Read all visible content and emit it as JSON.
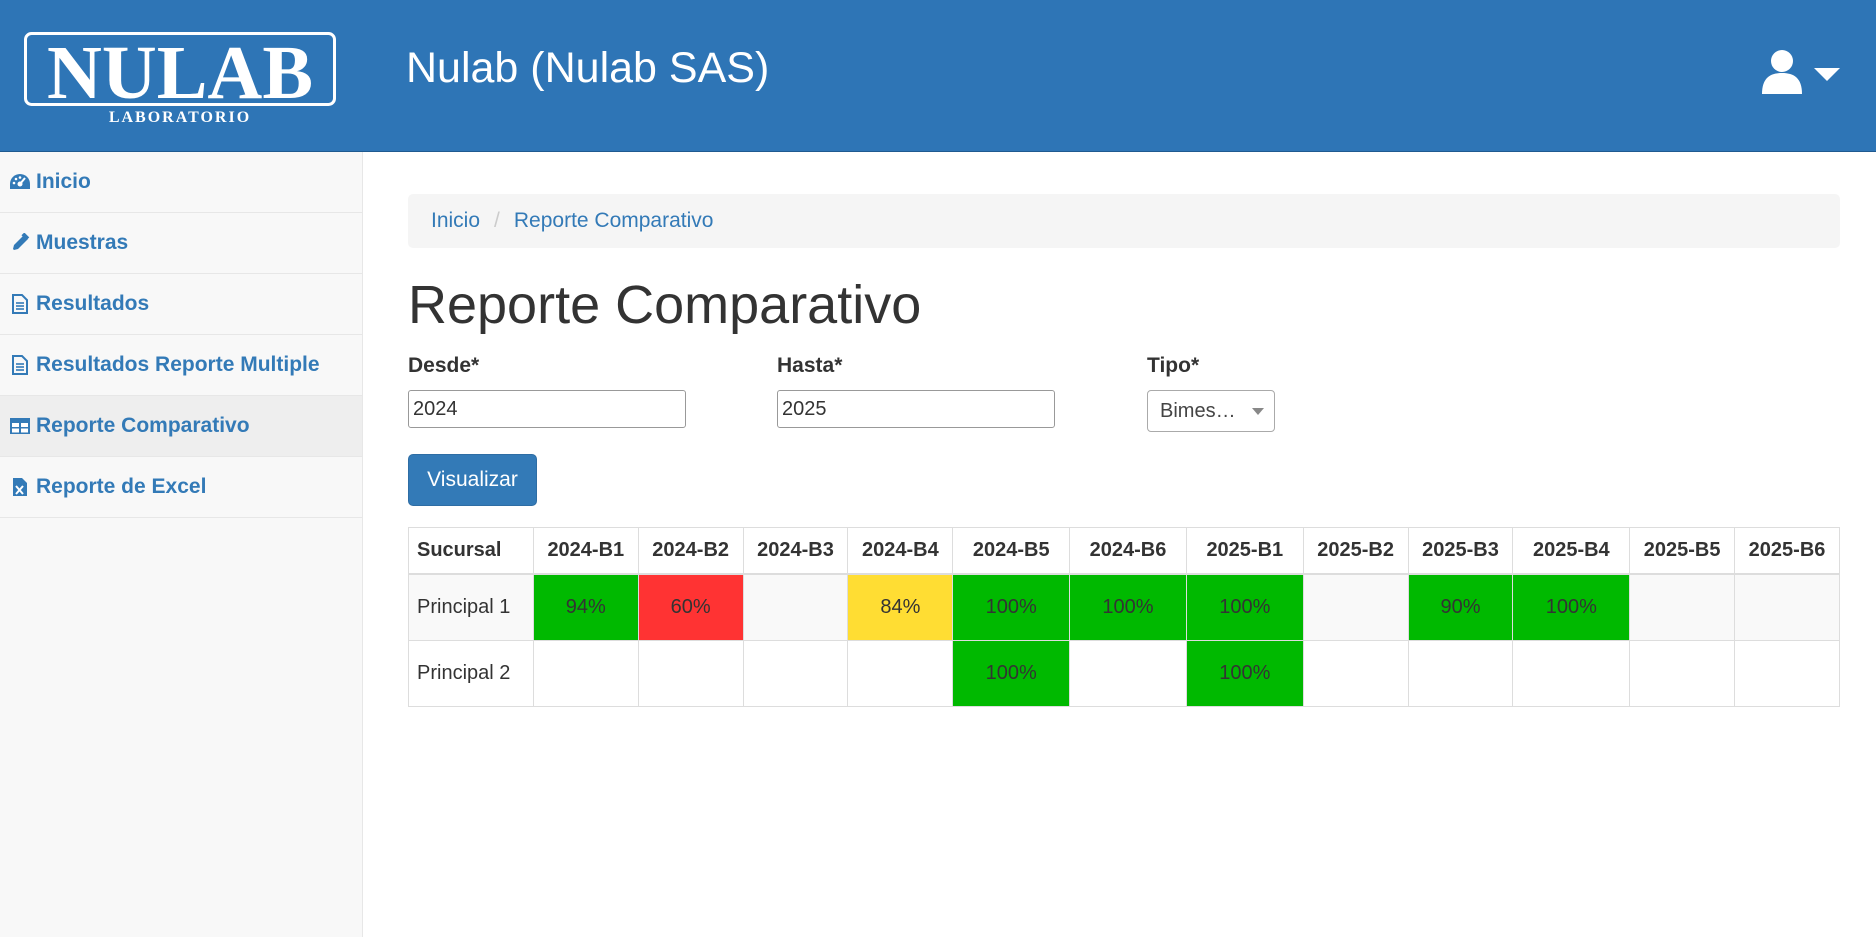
{
  "header": {
    "logo_text": "NULAB",
    "logo_subtext": "LABORATORIO",
    "title": "Nulab (Nulab SAS)"
  },
  "sidebar": {
    "items": [
      {
        "label": "Inicio",
        "icon": "dashboard-icon"
      },
      {
        "label": "Muestras",
        "icon": "eyedropper-icon"
      },
      {
        "label": "Resultados",
        "icon": "file-text-icon"
      },
      {
        "label": "Resultados Reporte Multiple",
        "icon": "file-text-icon"
      },
      {
        "label": "Reporte Comparativo",
        "icon": "table-icon",
        "active": true
      },
      {
        "label": "Reporte de Excel",
        "icon": "file-excel-icon"
      }
    ]
  },
  "breadcrumb": {
    "home": "Inicio",
    "current": "Reporte Comparativo"
  },
  "page": {
    "title": "Reporte Comparativo"
  },
  "form": {
    "desde_label": "Desde*",
    "desde_value": "2024",
    "hasta_label": "Hasta*",
    "hasta_value": "2025",
    "tipo_label": "Tipo*",
    "tipo_value": "Bimes…",
    "submit_label": "Visualizar"
  },
  "colors": {
    "header_bg": "#2e75b6",
    "link": "#337ab7",
    "green": "#00b900",
    "red": "#ff3333",
    "yellow": "#ffdd33"
  },
  "table": {
    "headers": [
      "Sucursal",
      "2024-B1",
      "2024-B2",
      "2024-B3",
      "2024-B4",
      "2024-B5",
      "2024-B6",
      "2025-B1",
      "2025-B2",
      "2025-B3",
      "2025-B4",
      "2025-B5",
      "2025-B6"
    ],
    "rows": [
      {
        "sucursal": "Principal 1",
        "cells": [
          {
            "value": "94%",
            "status": "green"
          },
          {
            "value": "60%",
            "status": "red"
          },
          {
            "value": "",
            "status": ""
          },
          {
            "value": "84%",
            "status": "yellow"
          },
          {
            "value": "100%",
            "status": "green"
          },
          {
            "value": "100%",
            "status": "green"
          },
          {
            "value": "100%",
            "status": "green"
          },
          {
            "value": "",
            "status": ""
          },
          {
            "value": "90%",
            "status": "green"
          },
          {
            "value": "100%",
            "status": "green"
          },
          {
            "value": "",
            "status": ""
          },
          {
            "value": "",
            "status": ""
          }
        ]
      },
      {
        "sucursal": "Principal 2",
        "cells": [
          {
            "value": "",
            "status": ""
          },
          {
            "value": "",
            "status": ""
          },
          {
            "value": "",
            "status": ""
          },
          {
            "value": "",
            "status": ""
          },
          {
            "value": "100%",
            "status": "green"
          },
          {
            "value": "",
            "status": ""
          },
          {
            "value": "100%",
            "status": "green"
          },
          {
            "value": "",
            "status": ""
          },
          {
            "value": "",
            "status": ""
          },
          {
            "value": "",
            "status": ""
          },
          {
            "value": "",
            "status": ""
          },
          {
            "value": "",
            "status": ""
          }
        ]
      }
    ]
  }
}
